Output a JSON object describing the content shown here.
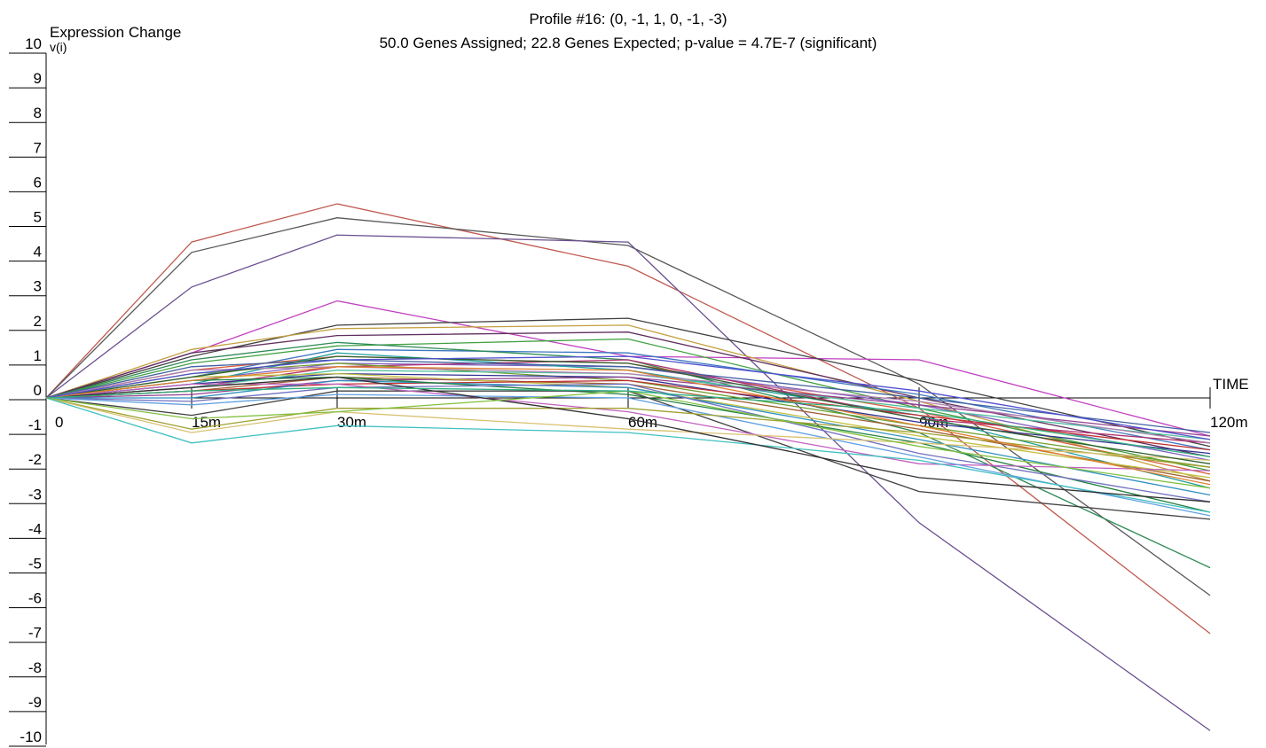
{
  "chart_data": {
    "type": "line",
    "title": "Profile #16: (0, -1, 1, 0, -1, -3)",
    "subtitle": "50.0 Genes Assigned; 22.8 Genes Expected; p-value = 4.7E-7 (significant)",
    "ylabel": "Expression Change",
    "ylabel2": "v(i)",
    "xlabel": "TIME",
    "x_ticks": [
      0,
      15,
      30,
      60,
      90,
      120
    ],
    "x_tick_labels": [
      "0",
      "15m",
      "30m",
      "60m",
      "90m",
      "120m"
    ],
    "y_ticks": [
      10,
      9,
      8,
      7,
      6,
      5,
      4,
      3,
      2,
      1,
      0,
      -1,
      -2,
      -3,
      -4,
      -5,
      -6,
      -7,
      -8,
      -9,
      -10
    ],
    "ylim": [
      -10,
      10
    ],
    "xlim": [
      0,
      120
    ],
    "grid": false,
    "legend": "none",
    "series": [
      {
        "color": "#c05a50",
        "values": [
          0,
          4.5,
          5.6,
          3.8,
          -0.3,
          -6.8
        ]
      },
      {
        "color": "#585858",
        "values": [
          0,
          4.2,
          5.2,
          4.4,
          0.4,
          -5.7
        ]
      },
      {
        "color": "#6a4f8f",
        "values": [
          0,
          3.2,
          4.7,
          4.5,
          -3.6,
          -9.6
        ]
      },
      {
        "color": "#c040c0",
        "values": [
          0,
          1.3,
          2.8,
          1.2,
          1.1,
          -1.1
        ]
      },
      {
        "color": "#404040",
        "values": [
          0,
          1.2,
          2.1,
          2.3,
          0.5,
          -1.4
        ]
      },
      {
        "color": "#c4a040",
        "values": [
          0,
          1.4,
          2.0,
          2.1,
          -0.1,
          -2.4
        ]
      },
      {
        "color": "#603060",
        "values": [
          0,
          1.3,
          1.8,
          1.9,
          0.0,
          -1.7
        ]
      },
      {
        "color": "#40a040",
        "values": [
          0,
          1.0,
          1.5,
          1.7,
          -0.3,
          -2.1
        ]
      },
      {
        "color": "#3c78c0",
        "values": [
          0,
          0.6,
          1.4,
          1.3,
          0.1,
          -1.5
        ]
      },
      {
        "color": "#2e8b57",
        "values": [
          0,
          1.1,
          1.6,
          1.1,
          -1.0,
          -4.9
        ]
      },
      {
        "color": "#d86040",
        "values": [
          0,
          0.8,
          1.2,
          1.0,
          -0.4,
          -2.2
        ]
      },
      {
        "color": "#8060c0",
        "values": [
          0,
          0.5,
          1.0,
          0.9,
          -0.2,
          -1.8
        ]
      },
      {
        "color": "#20a0a0",
        "values": [
          0,
          0.4,
          1.3,
          0.8,
          -0.5,
          -2.6
        ]
      },
      {
        "color": "#b03070",
        "values": [
          0,
          0.3,
          0.9,
          1.1,
          -0.6,
          -1.3
        ]
      },
      {
        "color": "#70a030",
        "values": [
          0,
          0.7,
          1.0,
          0.5,
          -0.8,
          -2.0
        ]
      },
      {
        "color": "#303090",
        "values": [
          0,
          0.4,
          0.7,
          0.6,
          -0.7,
          -1.6
        ]
      },
      {
        "color": "#a06030",
        "values": [
          0,
          0.2,
          0.6,
          0.4,
          -0.9,
          -2.4
        ]
      },
      {
        "color": "#50c0a0",
        "values": [
          0,
          0.3,
          0.8,
          0.7,
          -0.3,
          -1.2
        ]
      },
      {
        "color": "#904090",
        "values": [
          0,
          0.1,
          0.5,
          0.6,
          -0.2,
          -1.1
        ]
      },
      {
        "color": "#c0c040",
        "values": [
          0,
          0.6,
          0.7,
          0.3,
          -1.1,
          -2.3
        ]
      },
      {
        "color": "#c03030",
        "values": [
          0,
          0.2,
          0.4,
          0.5,
          -0.5,
          -1.5
        ]
      },
      {
        "color": "#3090c0",
        "values": [
          0,
          0.0,
          0.5,
          0.3,
          -1.2,
          -2.8
        ]
      },
      {
        "color": "#208040",
        "values": [
          0,
          0.5,
          0.6,
          0.1,
          -1.3,
          -3.3
        ]
      },
      {
        "color": "#7070c0",
        "values": [
          0,
          -0.1,
          0.3,
          0.4,
          -1.6,
          -3.0
        ]
      },
      {
        "color": "#404040",
        "values": [
          0,
          -0.5,
          0.2,
          0.2,
          -2.7,
          -3.5
        ]
      },
      {
        "color": "#c060c0",
        "values": [
          0,
          0.4,
          0.4,
          -0.4,
          -1.9,
          -2.1
        ]
      },
      {
        "color": "#60a0e0",
        "values": [
          0,
          -0.2,
          0.1,
          0.0,
          -1.7,
          -3.4
        ]
      },
      {
        "color": "#a0a030",
        "values": [
          0,
          -0.9,
          -0.3,
          -0.3,
          -1.0,
          -2.0
        ]
      },
      {
        "color": "#d8c070",
        "values": [
          0,
          -1.0,
          -0.4,
          -0.9,
          -1.3,
          -1.8
        ]
      },
      {
        "color": "#40c0c0",
        "values": [
          0,
          -1.3,
          -0.8,
          -1.0,
          -1.8,
          -3.3
        ]
      },
      {
        "color": "#303030",
        "values": [
          0,
          0.3,
          0.6,
          -0.6,
          -2.3,
          -3.0
        ]
      },
      {
        "color": "#80c040",
        "values": [
          0,
          -0.6,
          -0.4,
          0.2,
          -1.4,
          -2.6
        ]
      },
      {
        "color": "#4060a0",
        "values": [
          0,
          0.9,
          1.1,
          0.9,
          0.0,
          -1.0
        ]
      },
      {
        "color": "#b080b0",
        "values": [
          0,
          0.8,
          0.9,
          0.7,
          -0.1,
          -1.3
        ]
      },
      {
        "color": "#306030",
        "values": [
          0,
          0.6,
          1.2,
          1.0,
          -0.6,
          -1.9
        ]
      },
      {
        "color": "#e08030",
        "values": [
          0,
          0.5,
          0.9,
          0.8,
          -0.8,
          -2.5
        ]
      },
      {
        "color": "#5050d0",
        "values": [
          0,
          0.7,
          1.1,
          1.2,
          0.2,
          -1.2
        ]
      },
      {
        "color": "#30b080",
        "values": [
          0,
          0.2,
          0.3,
          0.2,
          -0.4,
          -1.7
        ]
      }
    ]
  }
}
